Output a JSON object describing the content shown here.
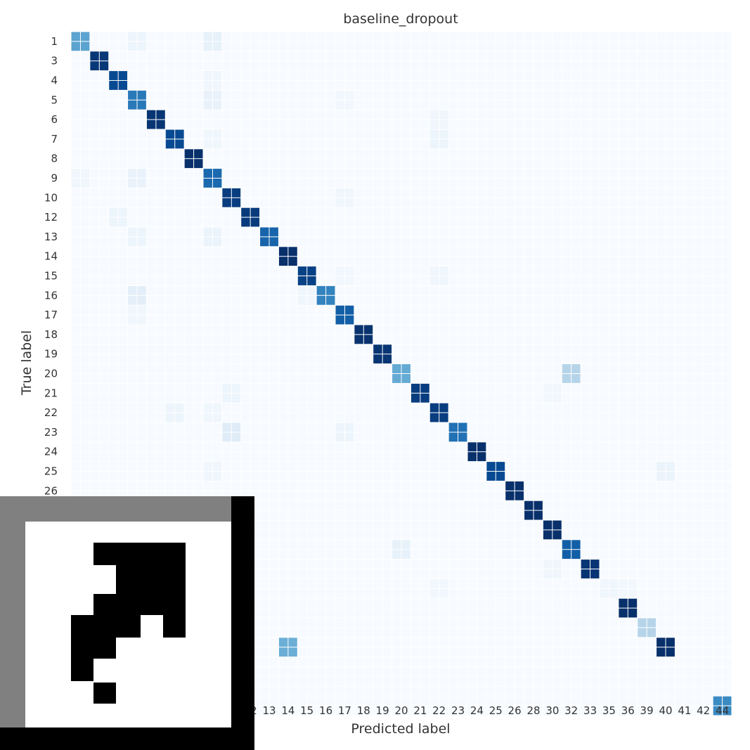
{
  "chart_data": {
    "type": "heatmap",
    "title": "baseline_dropout",
    "xlabel": "Predicted label",
    "ylabel": "True label",
    "labels": [
      "1",
      "3",
      "4",
      "5",
      "6",
      "7",
      "8",
      "9",
      "10",
      "12",
      "13",
      "14",
      "15",
      "16",
      "17",
      "18",
      "19",
      "20",
      "21",
      "22",
      "23",
      "24",
      "25",
      "26",
      "28",
      "30",
      "32",
      "33",
      "35",
      "36",
      "39",
      "40",
      "41",
      "42",
      "44"
    ],
    "value_range": [
      0,
      1
    ],
    "colormap": "Blues",
    "diagonal": [
      0.55,
      0.97,
      0.9,
      0.72,
      0.98,
      0.9,
      1.0,
      0.78,
      0.95,
      0.96,
      0.8,
      1.0,
      0.93,
      0.68,
      0.82,
      0.99,
      0.98,
      0.52,
      0.95,
      0.95,
      0.75,
      1.0,
      0.9,
      1.0,
      1.0,
      1.0,
      0.82,
      0.98,
      0.04,
      1.0,
      0.3,
      1.0,
      0.0,
      0.0,
      0.65
    ],
    "off_diagonal": [
      {
        "true": "1",
        "pred": "5",
        "value": 0.05
      },
      {
        "true": "1",
        "pred": "9",
        "value": 0.08
      },
      {
        "true": "4",
        "pred": "9",
        "value": 0.04
      },
      {
        "true": "5",
        "pred": "9",
        "value": 0.07
      },
      {
        "true": "5",
        "pred": "17",
        "value": 0.03
      },
      {
        "true": "6",
        "pred": "22",
        "value": 0.04
      },
      {
        "true": "7",
        "pred": "9",
        "value": 0.04
      },
      {
        "true": "7",
        "pred": "22",
        "value": 0.05
      },
      {
        "true": "9",
        "pred": "1",
        "value": 0.04
      },
      {
        "true": "9",
        "pred": "5",
        "value": 0.07
      },
      {
        "true": "10",
        "pred": "17",
        "value": 0.04
      },
      {
        "true": "12",
        "pred": "4",
        "value": 0.05
      },
      {
        "true": "13",
        "pred": "5",
        "value": 0.05
      },
      {
        "true": "13",
        "pred": "9",
        "value": 0.06
      },
      {
        "true": "15",
        "pred": "17",
        "value": 0.03
      },
      {
        "true": "15",
        "pred": "22",
        "value": 0.04
      },
      {
        "true": "16",
        "pred": "5",
        "value": 0.1
      },
      {
        "true": "16",
        "pred": "15",
        "value": 0.04
      },
      {
        "true": "17",
        "pred": "5",
        "value": 0.04
      },
      {
        "true": "20",
        "pred": "32",
        "value": 0.3
      },
      {
        "true": "21",
        "pred": "10",
        "value": 0.05
      },
      {
        "true": "21",
        "pred": "30",
        "value": 0.03
      },
      {
        "true": "22",
        "pred": "7",
        "value": 0.05
      },
      {
        "true": "22",
        "pred": "9",
        "value": 0.04
      },
      {
        "true": "23",
        "pred": "10",
        "value": 0.12
      },
      {
        "true": "23",
        "pred": "17",
        "value": 0.05
      },
      {
        "true": "25",
        "pred": "9",
        "value": 0.04
      },
      {
        "true": "25",
        "pred": "40",
        "value": 0.06
      },
      {
        "true": "32",
        "pred": "20",
        "value": 0.08
      },
      {
        "true": "33",
        "pred": "30",
        "value": 0.04
      },
      {
        "true": "35",
        "pred": "22",
        "value": 0.03
      },
      {
        "true": "35",
        "pred": "36",
        "value": 0.03
      },
      {
        "true": "40",
        "pred": "14",
        "value": 0.5
      }
    ],
    "grid": true,
    "colorbar": false
  },
  "overlay": {
    "icon": "qr-code-fragment-icon",
    "colors": {
      "frame": "#808080",
      "ink": "#000000",
      "paper": "#ffffff"
    }
  }
}
